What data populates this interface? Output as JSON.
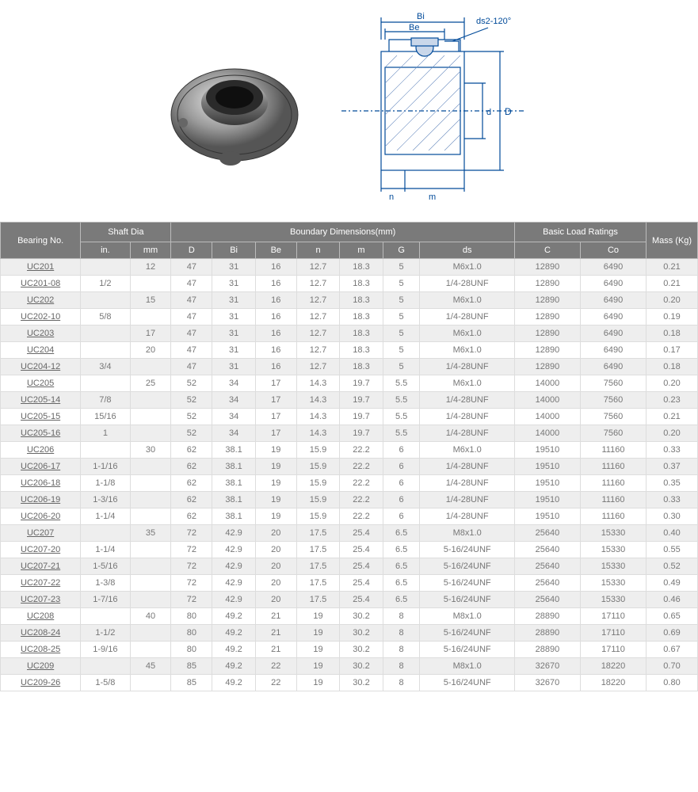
{
  "figure": {
    "annotation_ds": "d<sub>s</sub>2-120°",
    "label_Bi": "B<sub>i</sub>",
    "label_Be": "B<sub>e</sub>",
    "label_D": "D",
    "label_d": "d",
    "label_n": "n",
    "label_m": "m",
    "diagram_line_color": "#004a99"
  },
  "header": {
    "bearing_no": "Bearing No.",
    "shaft_dia": "Shaft Dia",
    "boundary": "Boundary Dimensions(mm)",
    "basic_load": "Basic Load Ratings",
    "mass": "Mass (Kg)",
    "cols": {
      "in": "in.",
      "mm": "mm",
      "D": "D",
      "Bi": "Bi",
      "Be": "Be",
      "n": "n",
      "m": "m",
      "G": "G",
      "ds": "ds",
      "C": "C",
      "Co": "Co"
    }
  },
  "rows": [
    [
      "UC201",
      "",
      "12",
      "47",
      "31",
      "16",
      "12.7",
      "18.3",
      "5",
      "M6x1.0",
      "12890",
      "6490",
      "0.21"
    ],
    [
      "UC201-08",
      "1/2",
      "",
      "47",
      "31",
      "16",
      "12.7",
      "18.3",
      "5",
      "1/4-28UNF",
      "12890",
      "6490",
      "0.21"
    ],
    [
      "UC202",
      "",
      "15",
      "47",
      "31",
      "16",
      "12.7",
      "18.3",
      "5",
      "M6x1.0",
      "12890",
      "6490",
      "0.20"
    ],
    [
      "UC202-10",
      "5/8",
      "",
      "47",
      "31",
      "16",
      "12.7",
      "18.3",
      "5",
      "1/4-28UNF",
      "12890",
      "6490",
      "0.19"
    ],
    [
      "UC203",
      "",
      "17",
      "47",
      "31",
      "16",
      "12.7",
      "18.3",
      "5",
      "M6x1.0",
      "12890",
      "6490",
      "0.18"
    ],
    [
      "UC204",
      "",
      "20",
      "47",
      "31",
      "16",
      "12.7",
      "18.3",
      "5",
      "M6x1.0",
      "12890",
      "6490",
      "0.17"
    ],
    [
      "UC204-12",
      "3/4",
      "",
      "47",
      "31",
      "16",
      "12.7",
      "18.3",
      "5",
      "1/4-28UNF",
      "12890",
      "6490",
      "0.18"
    ],
    [
      "UC205",
      "",
      "25",
      "52",
      "34",
      "17",
      "14.3",
      "19.7",
      "5.5",
      "M6x1.0",
      "14000",
      "7560",
      "0.20"
    ],
    [
      "UC205-14",
      "7/8",
      "",
      "52",
      "34",
      "17",
      "14.3",
      "19.7",
      "5.5",
      "1/4-28UNF",
      "14000",
      "7560",
      "0.23"
    ],
    [
      "UC205-15",
      "15/16",
      "",
      "52",
      "34",
      "17",
      "14.3",
      "19.7",
      "5.5",
      "1/4-28UNF",
      "14000",
      "7560",
      "0.21"
    ],
    [
      "UC205-16",
      "1",
      "",
      "52",
      "34",
      "17",
      "14.3",
      "19.7",
      "5.5",
      "1/4-28UNF",
      "14000",
      "7560",
      "0.20"
    ],
    [
      "UC206",
      "",
      "30",
      "62",
      "38.1",
      "19",
      "15.9",
      "22.2",
      "6",
      "M6x1.0",
      "19510",
      "11160",
      "0.33"
    ],
    [
      "UC206-17",
      "1-1/16",
      "",
      "62",
      "38.1",
      "19",
      "15.9",
      "22.2",
      "6",
      "1/4-28UNF",
      "19510",
      "11160",
      "0.37"
    ],
    [
      "UC206-18",
      "1-1/8",
      "",
      "62",
      "38.1",
      "19",
      "15.9",
      "22.2",
      "6",
      "1/4-28UNF",
      "19510",
      "11160",
      "0.35"
    ],
    [
      "UC206-19",
      "1-3/16",
      "",
      "62",
      "38.1",
      "19",
      "15.9",
      "22.2",
      "6",
      "1/4-28UNF",
      "19510",
      "11160",
      "0.33"
    ],
    [
      "UC206-20",
      "1-1/4",
      "",
      "62",
      "38.1",
      "19",
      "15.9",
      "22.2",
      "6",
      "1/4-28UNF",
      "19510",
      "11160",
      "0.30"
    ],
    [
      "UC207",
      "",
      "35",
      "72",
      "42.9",
      "20",
      "17.5",
      "25.4",
      "6.5",
      "M8x1.0",
      "25640",
      "15330",
      "0.40"
    ],
    [
      "UC207-20",
      "1-1/4",
      "",
      "72",
      "42.9",
      "20",
      "17.5",
      "25.4",
      "6.5",
      "5-16/24UNF",
      "25640",
      "15330",
      "0.55"
    ],
    [
      "UC207-21",
      "1-5/16",
      "",
      "72",
      "42.9",
      "20",
      "17.5",
      "25.4",
      "6.5",
      "5-16/24UNF",
      "25640",
      "15330",
      "0.52"
    ],
    [
      "UC207-22",
      "1-3/8",
      "",
      "72",
      "42.9",
      "20",
      "17.5",
      "25.4",
      "6.5",
      "5-16/24UNF",
      "25640",
      "15330",
      "0.49"
    ],
    [
      "UC207-23",
      "1-7/16",
      "",
      "72",
      "42.9",
      "20",
      "17.5",
      "25.4",
      "6.5",
      "5-16/24UNF",
      "25640",
      "15330",
      "0.46"
    ],
    [
      "UC208",
      "",
      "40",
      "80",
      "49.2",
      "21",
      "19",
      "30.2",
      "8",
      "M8x1.0",
      "28890",
      "17110",
      "0.65"
    ],
    [
      "UC208-24",
      "1-1/2",
      "",
      "80",
      "49.2",
      "21",
      "19",
      "30.2",
      "8",
      "5-16/24UNF",
      "28890",
      "17110",
      "0.69"
    ],
    [
      "UC208-25",
      "1-9/16",
      "",
      "80",
      "49.2",
      "21",
      "19",
      "30.2",
      "8",
      "5-16/24UNF",
      "28890",
      "17110",
      "0.67"
    ],
    [
      "UC209",
      "",
      "45",
      "85",
      "49.2",
      "22",
      "19",
      "30.2",
      "8",
      "M8x1.0",
      "32670",
      "18220",
      "0.70"
    ],
    [
      "UC209-26",
      "1-5/8",
      "",
      "85",
      "49.2",
      "22",
      "19",
      "30.2",
      "8",
      "5-16/24UNF",
      "32670",
      "18220",
      "0.80"
    ]
  ],
  "link_columns": [
    0
  ],
  "colors": {
    "header_bg": "#7a7a7a",
    "row_odd": "#eeeeee",
    "row_even": "#ffffff",
    "border": "#dddddd",
    "text": "#777777"
  }
}
